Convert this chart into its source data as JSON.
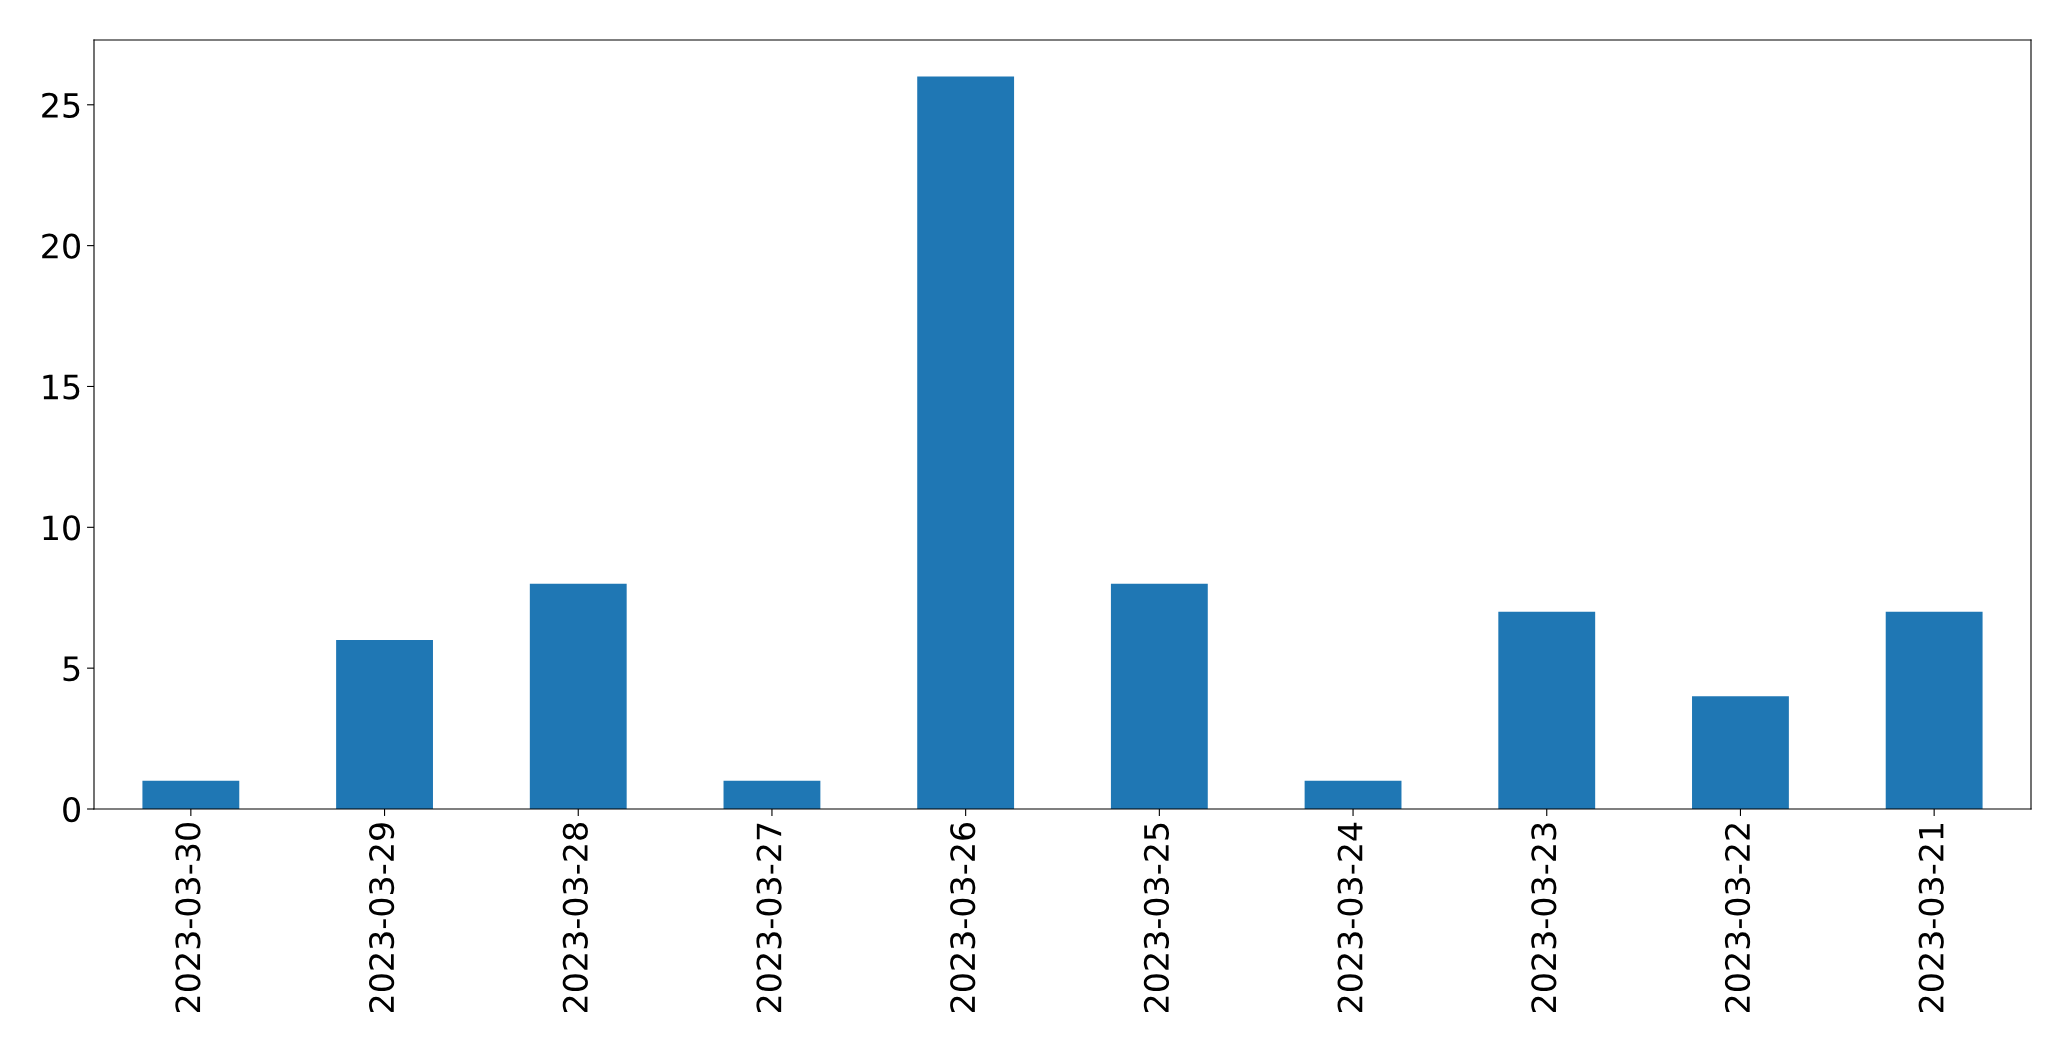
{
  "chart_data": {
    "type": "bar",
    "categories": [
      "2023-03-30",
      "2023-03-29",
      "2023-03-28",
      "2023-03-27",
      "2023-03-26",
      "2023-03-25",
      "2023-03-24",
      "2023-03-23",
      "2023-03-22",
      "2023-03-21"
    ],
    "values": [
      1,
      6,
      8,
      1,
      26,
      8,
      1,
      7,
      4,
      7
    ],
    "color": "#1f77b4",
    "ylim": [
      0,
      27.3
    ],
    "yticks": [
      0,
      5,
      10,
      15,
      20,
      25
    ],
    "grid": false
  }
}
